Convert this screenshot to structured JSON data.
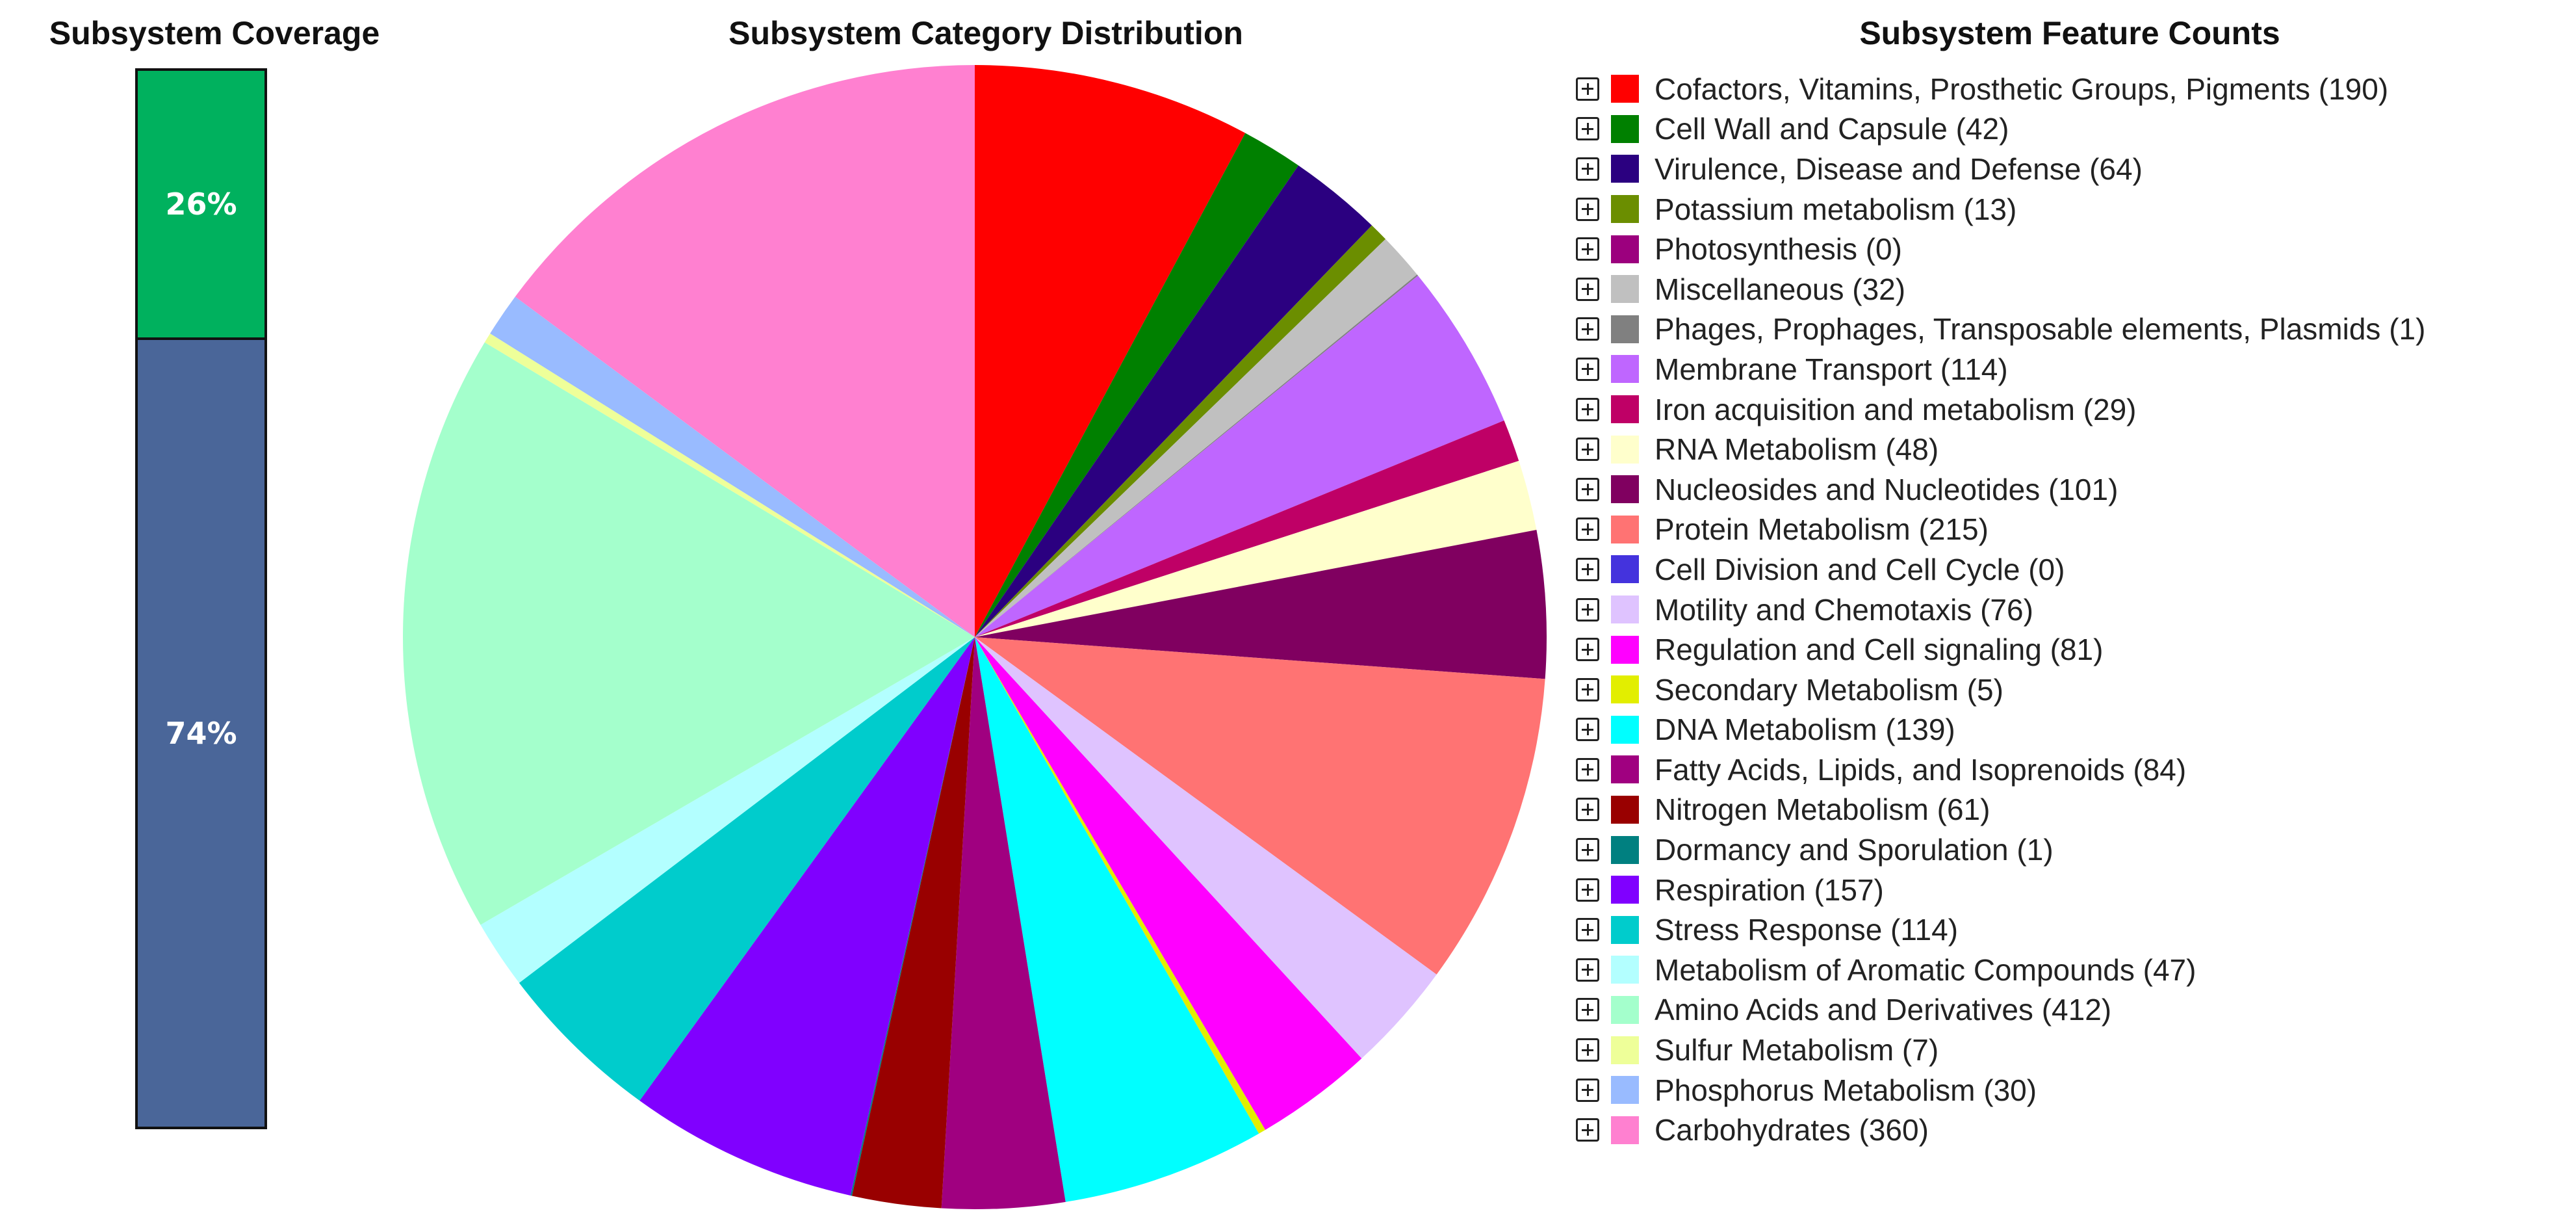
{
  "coverage": {
    "title": "Subsystem Coverage",
    "covered_fraction": 0.255,
    "covered_label": "26%",
    "covered_color": "#00b15e",
    "uncovered_label": "74%",
    "uncovered_color": "#4a6699"
  },
  "pie": {
    "title": "Subsystem Category Distribution"
  },
  "legend": {
    "title": "Subsystem Feature Counts"
  },
  "chart_data": {
    "type": "pie",
    "title": "Subsystem Category Distribution",
    "slices": [
      {
        "name": "Cofactors, Vitamins, Prosthetic Groups, Pigments",
        "label": "Cofactors, Vitamins, Prosthetic Groups, Pigments (190)",
        "value": 190,
        "color": "#ff0000"
      },
      {
        "name": "Cell Wall and Capsule",
        "label": "Cell Wall and Capsule (42)",
        "value": 42,
        "color": "#008000"
      },
      {
        "name": "Virulence, Disease and Defense",
        "label": "Virulence, Disease and Defense (64)",
        "value": 64,
        "color": "#2b0080"
      },
      {
        "name": "Potassium metabolism",
        "label": "Potassium metabolism (13)",
        "value": 13,
        "color": "#6b8e00"
      },
      {
        "name": "Photosynthesis",
        "label": "Photosynthesis (0)",
        "value": 0,
        "color": "#9c007e"
      },
      {
        "name": "Miscellaneous",
        "label": "Miscellaneous (32)",
        "value": 32,
        "color": "#c0c0c0"
      },
      {
        "name": "Phages, Prophages, Transposable elements, Plasmids",
        "label": "Phages, Prophages, Transposable elements, Plasmids (1)",
        "value": 1,
        "color": "#808080"
      },
      {
        "name": "Membrane Transport",
        "label": "Membrane Transport (114)",
        "value": 114,
        "color": "#bf66ff"
      },
      {
        "name": "Iron acquisition and metabolism",
        "label": "Iron acquisition and metabolism (29)",
        "value": 29,
        "color": "#bf0066"
      },
      {
        "name": "RNA Metabolism",
        "label": "RNA Metabolism (48)",
        "value": 48,
        "color": "#ffffcc"
      },
      {
        "name": "Nucleosides and Nucleotides",
        "label": "Nucleosides and Nucleotides (101)",
        "value": 101,
        "color": "#800060"
      },
      {
        "name": "Protein Metabolism",
        "label": "Protein Metabolism (215)",
        "value": 215,
        "color": "#ff7373"
      },
      {
        "name": "Cell Division and Cell Cycle",
        "label": "Cell Division and Cell Cycle (0)",
        "value": 0,
        "color": "#4433dd"
      },
      {
        "name": "Motility and Chemotaxis",
        "label": "Motility and Chemotaxis (76)",
        "value": 76,
        "color": "#dfc3ff"
      },
      {
        "name": "Regulation and Cell signaling",
        "label": "Regulation and Cell signaling (81)",
        "value": 81,
        "color": "#ff00ff"
      },
      {
        "name": "Secondary Metabolism",
        "label": "Secondary Metabolism (5)",
        "value": 5,
        "color": "#e2ee00"
      },
      {
        "name": "DNA Metabolism",
        "label": "DNA Metabolism (139)",
        "value": 139,
        "color": "#00ffff"
      },
      {
        "name": "Fatty Acids, Lipids, and Isoprenoids",
        "label": "Fatty Acids, Lipids, and Isoprenoids (84)",
        "value": 84,
        "color": "#a00080"
      },
      {
        "name": "Nitrogen Metabolism",
        "label": "Nitrogen Metabolism (61)",
        "value": 61,
        "color": "#990000"
      },
      {
        "name": "Dormancy and Sporulation",
        "label": "Dormancy and Sporulation (1)",
        "value": 1,
        "color": "#008080"
      },
      {
        "name": "Respiration",
        "label": "Respiration (157)",
        "value": 157,
        "color": "#8000ff"
      },
      {
        "name": "Stress Response",
        "label": "Stress Response (114)",
        "value": 114,
        "color": "#00cccc"
      },
      {
        "name": "Metabolism of Aromatic Compounds",
        "label": "Metabolism of Aromatic Compounds (47)",
        "value": 47,
        "color": "#b3ffff"
      },
      {
        "name": "Amino Acids and Derivatives",
        "label": "Amino Acids and Derivatives (412)",
        "value": 412,
        "color": "#a4ffcc"
      },
      {
        "name": "Sulfur Metabolism",
        "label": "Sulfur Metabolism (7)",
        "value": 7,
        "color": "#eeff99"
      },
      {
        "name": "Phosphorus Metabolism",
        "label": "Phosphorus Metabolism (30)",
        "value": 30,
        "color": "#99bbff"
      },
      {
        "name": "Carbohydrates",
        "label": "Carbohydrates (360)",
        "value": 360,
        "color": "#ff80d0"
      }
    ],
    "legend_position": "right"
  }
}
